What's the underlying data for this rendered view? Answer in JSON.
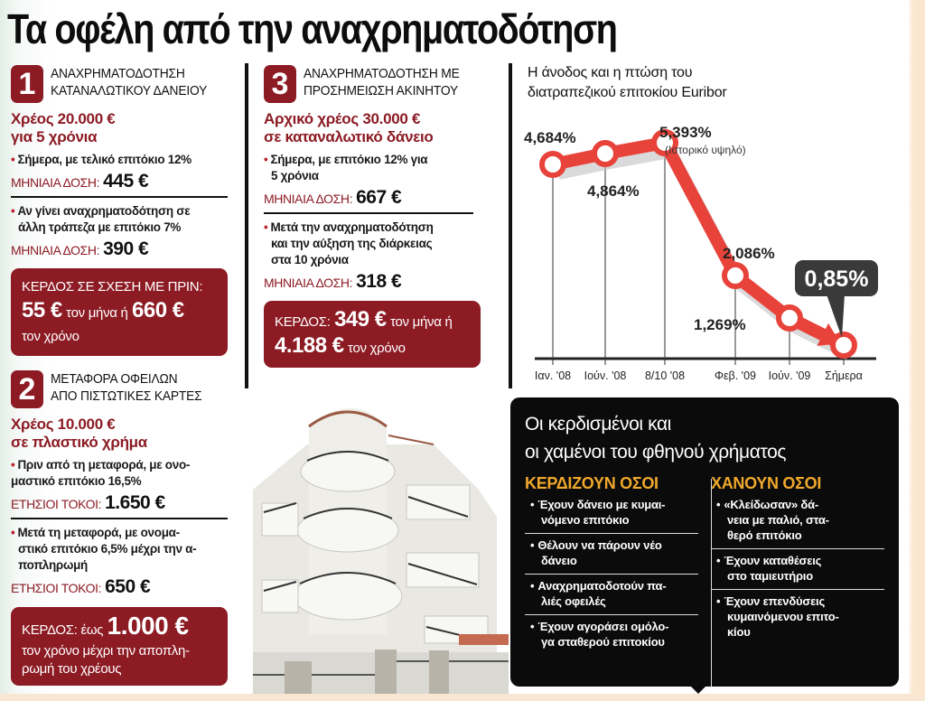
{
  "title": "Τα οφέλη από την αναχρηματοδότηση",
  "colors": {
    "accent_red": "#8c1b24",
    "chart_red": "#e8433a",
    "orange_heading": "#f0a82c",
    "dark_box": "#0b0b0b",
    "callout_bg": "#3a3a3a"
  },
  "section1": {
    "number": "1",
    "title_line1": "ΑΝΑΧΡΗΜΑΤΟΔΟΤΗΣΗ",
    "title_line2": "ΚΑΤΑΝΑΛΩΤΙΚΟΥ ΔΑΝΕΙΟΥ",
    "debt_line1": "Χρέος 20.000 €",
    "debt_line2": "για 5 χρόνια",
    "bullet1": "Σήμερα, με τελικό επιτόκιο 12%",
    "rate1_label": "ΜΗΝΙΑΙΑ ΔΟΣΗ:",
    "rate1_value": "445 €",
    "bullet2_line1": "Αν γίνει αναχρηματοδότηση σε",
    "bullet2_line2": "άλλη τράπεζα με επιτόκιο 7%",
    "rate2_label": "ΜΗΝΙΑΙΑ ΔΟΣΗ:",
    "rate2_value": "390 €",
    "gain": {
      "label": "ΚΕΡΔΟΣ ΣΕ ΣΧΕΣΗ ΜΕ ΠΡΙΝ:",
      "value1": "55 €",
      "mid": "τον μήνα ή",
      "value2": "660 €",
      "tail": "τον χρόνο"
    }
  },
  "section2": {
    "number": "2",
    "title_line1": "ΜΕΤΑΦΟΡΑ ΟΦΕΙΛΩΝ",
    "title_line2": "ΑΠΟ ΠΙΣΤΩΤΙΚΕΣ ΚΑΡΤΕΣ",
    "debt_line1": "Χρέος 10.000 €",
    "debt_line2": "σε πλαστικό χρήμα",
    "bullet1_line1": "Πριν από τη μεταφορά, με ονο-",
    "bullet1_line2": "μαστικό επιτόκιο 16,5%",
    "rate1_label": "ΕΤΗΣΙΟΙ ΤΟΚΟΙ:",
    "rate1_value": "1.650 €",
    "bullet2_line1": "Μετά τη μεταφορά, με ονομα-",
    "bullet2_line2": "στικό επιτόκιο 6,5% μέχρι την α-",
    "bullet2_line3": "ποπληρωμή",
    "rate2_label": "ΕΤΗΣΙΟΙ ΤΟΚΟΙ:",
    "rate2_value": "650 €",
    "gain": {
      "label": "ΚΕΡΔΟΣ: έως",
      "value": "1.000 €",
      "line2": "τον χρόνο μέχρι την αποπλη-",
      "line3": "ρωμή του χρέους"
    }
  },
  "section3": {
    "number": "3",
    "title_line1": "ΑΝΑΧΡΗΜΑΤΟΔΟΤΗΣΗ ΜΕ",
    "title_line2": "ΠΡΟΣΗΜΕΙΩΣΗ ΑΚΙΝΗΤΟΥ",
    "debt_line1": "Αρχικό χρέος 30.000 €",
    "debt_line2": "σε καταναλωτικό δάνειο",
    "bullet1_line1": "Σήμερα, με επιτόκιο 12% για",
    "bullet1_line2": "5 χρόνια",
    "rate1_label": "ΜΗΝΙΑΙΑ ΔΟΣΗ:",
    "rate1_value": "667 €",
    "bullet2_line1": "Μετά την αναχρηματοδότηση",
    "bullet2_line2": "και την αύξηση της διάρκειας",
    "bullet2_line3": "στα 10 χρόνια",
    "rate2_label": "ΜΗΝΙΑΙΑ ΔΟΣΗ:",
    "rate2_value": "318 €",
    "gain": {
      "label": "ΚΕΡΔΟΣ:",
      "value1": "349 €",
      "mid": "τον μήνα ή",
      "value2": "4.188 €",
      "tail": "τον χρόνο"
    }
  },
  "chart_data": {
    "type": "line",
    "title": "Η άνοδος και η πτώση του διατραπεζικού επιτοκίου Euribor",
    "xlabel": "",
    "ylabel": "",
    "categories": [
      "Ιαν. '08",
      "Ιούν. '08",
      "8/10 '08",
      "Φεβ. '09",
      "Ιούν. '09",
      "Σήμερα"
    ],
    "values": [
      4.684,
      4.864,
      5.393,
      2.086,
      1.269,
      0.85
    ],
    "point_labels": [
      "4,684%",
      "4,864%",
      "5,393%",
      "2,086%",
      "1,269%",
      "0,85%"
    ],
    "annotations": [
      {
        "point": "8/10 '08",
        "text": "(Ιστορικό υψηλό)"
      },
      {
        "point": "Σήμερα",
        "text": "0,85%",
        "style": "callout"
      }
    ],
    "grid": false,
    "legend": "none"
  },
  "winners_losers": {
    "title_line1": "Οι κερδισμένοι και",
    "title_line2": "οι χαμένοι του φθηνού χρήματος",
    "winners": {
      "heading": "ΚΕΡΔΙΖΟΥΝ ΟΣΟΙ",
      "items": [
        {
          "line1": "Έχουν δάνειο με κυμαι-",
          "line2": "νόμενο επιτόκιο"
        },
        {
          "line1": "Θέλουν να πάρουν νέο",
          "line2": "δάνειο"
        },
        {
          "line1": "Αναχρηματοδοτούν πα-",
          "line2": "λιές οφειλές"
        },
        {
          "line1": "Έχουν αγοράσει ομόλο-",
          "line2": "γα σταθερού επιτοκίου"
        }
      ]
    },
    "losers": {
      "heading": "ΧΑΝΟΥΝ ΟΣΟΙ",
      "items": [
        {
          "line1": "«Κλείδωσαν» δά-",
          "line2": "νεια με παλιό, στα-",
          "line3": "θερό επιτόκιο"
        },
        {
          "line1": "Έχουν καταθέσεις",
          "line2": "στο ταμιευτήριο"
        },
        {
          "line1": "Έχουν επενδύσεις",
          "line2": "κυμαινόμενου επιτο-",
          "line3": "κίου"
        }
      ]
    }
  },
  "icons": {
    "bullet": "•"
  }
}
